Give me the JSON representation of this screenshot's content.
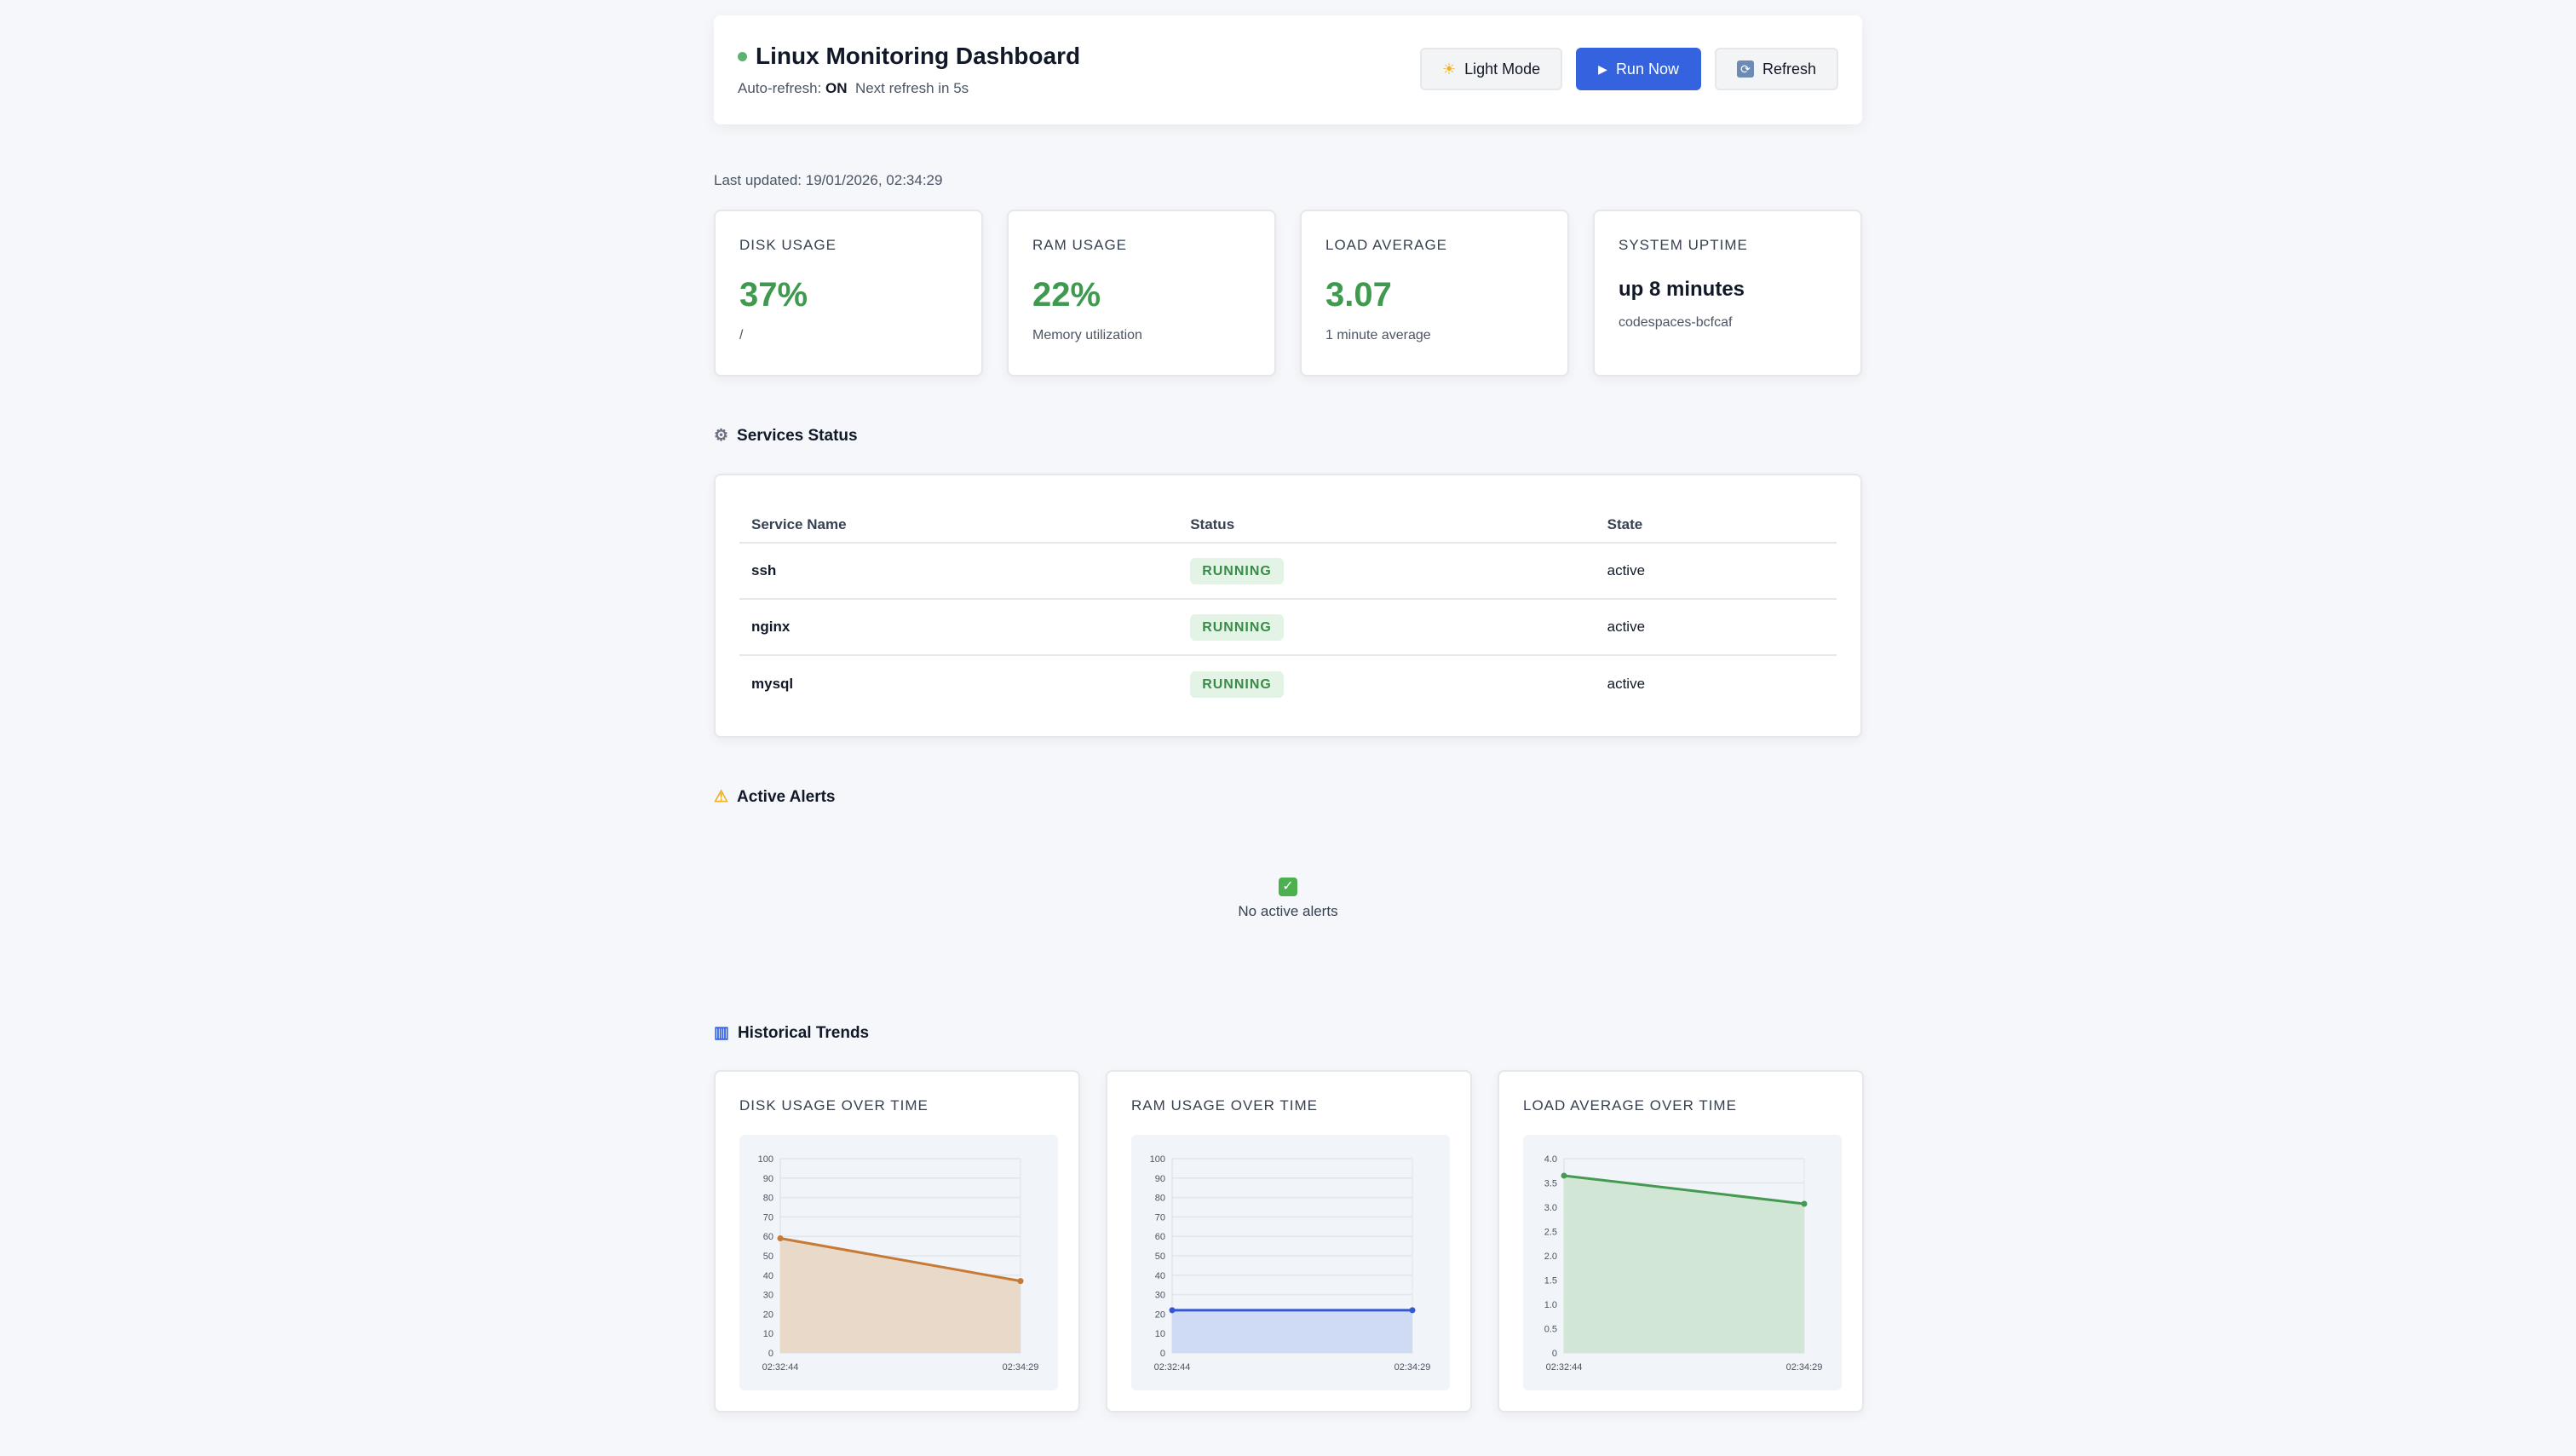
{
  "header": {
    "title": "Linux Monitoring Dashboard",
    "auto_refresh_label": "Auto-refresh:",
    "auto_refresh_value": "ON",
    "next_refresh": "Next refresh in 5s",
    "light_mode": "Light Mode",
    "run_now": "Run Now",
    "refresh": "Refresh"
  },
  "last_updated": "Last updated: 19/01/2026, 02:34:29",
  "stats": [
    {
      "label": "DISK USAGE",
      "value": "37%",
      "desc": "/"
    },
    {
      "label": "RAM USAGE",
      "value": "22%",
      "desc": "Memory utilization"
    },
    {
      "label": "LOAD AVERAGE",
      "value": "3.07",
      "desc": "1 minute average"
    },
    {
      "label": "SYSTEM UPTIME",
      "value": "up 8 minutes",
      "desc": "codespaces-bcfcaf"
    }
  ],
  "services": {
    "title": "Services Status",
    "headers": [
      "Service Name",
      "Status",
      "State"
    ],
    "rows": [
      {
        "name": "ssh",
        "status": "RUNNING",
        "state": "active"
      },
      {
        "name": "nginx",
        "status": "RUNNING",
        "state": "active"
      },
      {
        "name": "mysql",
        "status": "RUNNING",
        "state": "active"
      }
    ]
  },
  "alerts": {
    "title": "Active Alerts",
    "empty": "No active alerts"
  },
  "trends": {
    "title": "Historical Trends"
  },
  "chart_data": [
    {
      "type": "area",
      "title": "DISK USAGE OVER TIME",
      "x": [
        "02:32:44",
        "02:34:29"
      ],
      "values": [
        59,
        37
      ],
      "ylim": [
        0,
        100
      ],
      "yticks": [
        "0",
        "10",
        "20",
        "30",
        "40",
        "50",
        "60",
        "70",
        "80",
        "90",
        "100"
      ],
      "color": "#c77a35",
      "fill": "#e9d9c8"
    },
    {
      "type": "area",
      "title": "RAM USAGE OVER TIME",
      "x": [
        "02:32:44",
        "02:34:29"
      ],
      "values": [
        22,
        22
      ],
      "ylim": [
        0,
        100
      ],
      "yticks": [
        "0",
        "10",
        "20",
        "30",
        "40",
        "50",
        "60",
        "70",
        "80",
        "90",
        "100"
      ],
      "color": "#3458d0",
      "fill": "#cfdaf5"
    },
    {
      "type": "area",
      "title": "LOAD AVERAGE OVER TIME",
      "x": [
        "02:32:44",
        "02:34:29"
      ],
      "values": [
        3.65,
        3.07
      ],
      "ylim": [
        0,
        4
      ],
      "yticks": [
        "0",
        "0.5",
        "1.0",
        "1.5",
        "2.0",
        "2.5",
        "3.0",
        "3.5",
        "4.0"
      ],
      "color": "#459a52",
      "fill": "#d2e6d6"
    }
  ]
}
